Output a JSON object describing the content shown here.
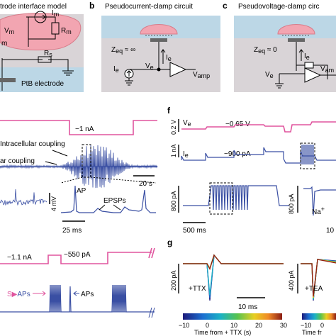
{
  "colors": {
    "pink": "#e0559e",
    "blue": "#3a4fa3",
    "panel_bg": "#d9d4d7",
    "water": "#bcd7e6",
    "cell": "#f2a5b1",
    "gray": "#888888"
  },
  "panels": {
    "a": {
      "title": "trode interface model",
      "labels": {
        "vm": "V",
        "vm_sub": "m",
        "im": "I",
        "im_sub": "m",
        "rm": "R",
        "rm_sub": "m",
        "rs": "R",
        "rs_sub": "s",
        "m": "m",
        "electrode": "PtB electrode"
      }
    },
    "b": {
      "letter": "b",
      "title": "Pseudocurrent-clamp circuit",
      "zeq": "Z",
      "zeq_sub": "eq",
      "zeq_val": " ≈ ∞",
      "ie": "I",
      "ie_sub": "e",
      "ve": "V",
      "ve_sub": "e",
      "ie2": "I",
      "ie2_sub": "e",
      "vamp": "V",
      "vamp_sub": "amp"
    },
    "c": {
      "letter": "c",
      "title": "Pseudovoltage-clamp circ",
      "zeq": "Z",
      "zeq_sub": "eq",
      "zeq_val": " ≈ 0",
      "ie": "I",
      "ie_sub": "e",
      "ve": "V",
      "ve_sub": "e",
      "vam": "V",
      "vam_sub": "am"
    },
    "d": {
      "current": "−1 nA",
      "intra": "Intracellular coupling",
      "extra": "ar coupling",
      "scale_t": "20 s",
      "scale_v": "4 mV",
      "ap": "AP",
      "epsp": "EPSPs",
      "scale_ms": "25 ms"
    },
    "e": {
      "current_low": "−1.1 nA",
      "current_high": "−550 pA",
      "saps_s": "S",
      "saps": "APs",
      "aps": "APs"
    },
    "f": {
      "letter": "f",
      "ve_axis": "0.2 V",
      "ve": "V",
      "ve_sub": "e",
      "ve_val": "−0.65 V",
      "ie_axis": "1 nA",
      "ie": "I",
      "ie_sub": "e",
      "ie_val": "−900 pA",
      "pa_axis": "800 pA",
      "pa_axis2": "800 pA",
      "scale_ms": "500 ms",
      "na": "Na",
      "na_sup": "+",
      "ten": "10"
    },
    "g": {
      "letter": "g",
      "axis1": "200 pA",
      "axis2": "400 pA",
      "ttx": "+TTX",
      "tea": "+TEA",
      "scale": "10 ms",
      "ticks": [
        "−10",
        "0",
        "10",
        "20",
        "30"
      ],
      "ticks2": [
        "−10",
        "0"
      ],
      "xlabel": "Time from + TTX (s)",
      "xlabel2": "Time fr"
    }
  }
}
